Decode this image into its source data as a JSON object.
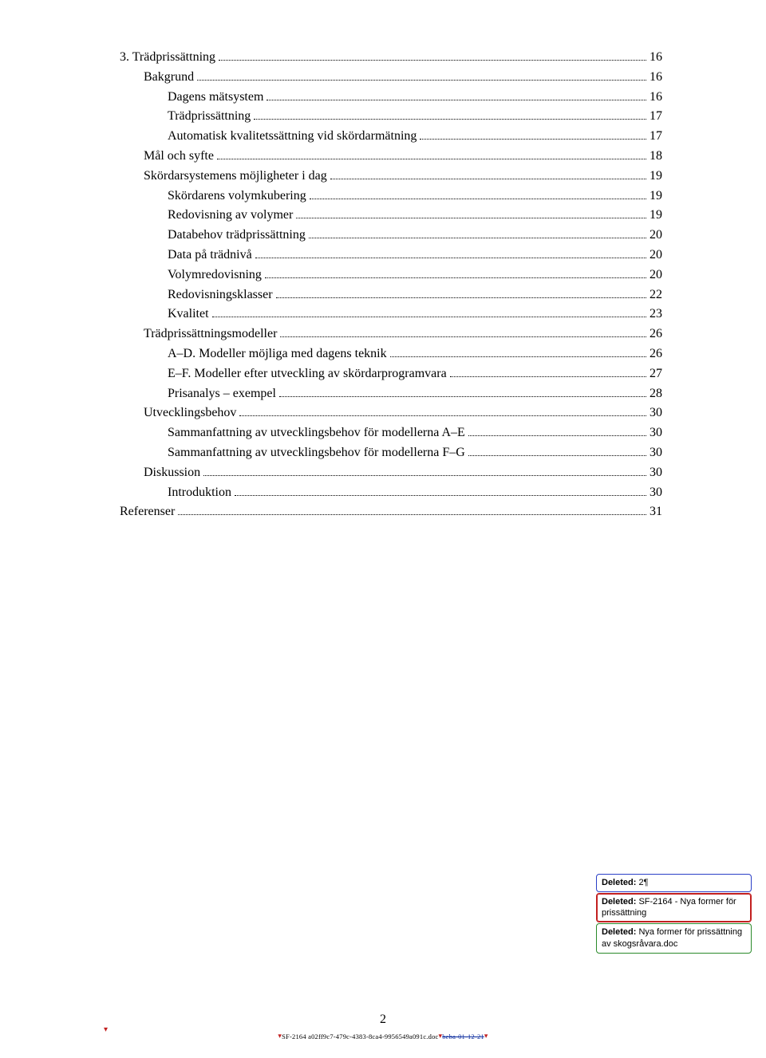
{
  "toc": [
    {
      "indent": 0,
      "label": "3. Trädprissättning",
      "page": "16"
    },
    {
      "indent": 1,
      "label": "Bakgrund",
      "page": "16"
    },
    {
      "indent": 2,
      "label": "Dagens mätsystem",
      "page": "16"
    },
    {
      "indent": 2,
      "label": "Trädprissättning",
      "page": "17"
    },
    {
      "indent": 2,
      "label": "Automatisk kvalitetssättning vid skördarmätning",
      "page": "17"
    },
    {
      "indent": 1,
      "label": "Mål och syfte",
      "page": "18"
    },
    {
      "indent": 1,
      "label": "Skördarsystemens möjligheter i dag",
      "page": "19"
    },
    {
      "indent": 2,
      "label": "Skördarens volymkubering",
      "page": "19"
    },
    {
      "indent": 2,
      "label": "Redovisning av volymer",
      "page": "19"
    },
    {
      "indent": 2,
      "label": "Databehov trädprissättning",
      "page": "20"
    },
    {
      "indent": 2,
      "label": "Data på trädnivå",
      "page": "20"
    },
    {
      "indent": 2,
      "label": "Volymredovisning",
      "page": "20"
    },
    {
      "indent": 2,
      "label": "Redovisningsklasser",
      "page": "22"
    },
    {
      "indent": 2,
      "label": "Kvalitet",
      "page": "23"
    },
    {
      "indent": 1,
      "label": "Trädprissättningsmodeller",
      "page": "26"
    },
    {
      "indent": 2,
      "label": "A–D. Modeller möjliga med dagens teknik",
      "page": "26"
    },
    {
      "indent": 2,
      "label": "E–F. Modeller efter utveckling av skördarprogramvara",
      "page": "27"
    },
    {
      "indent": 2,
      "label": "Prisanalys – exempel",
      "page": "28"
    },
    {
      "indent": 1,
      "label": "Utvecklingsbehov",
      "page": "30"
    },
    {
      "indent": 2,
      "label": "Sammanfattning av utvecklingsbehov för modellerna A–E",
      "page": "30"
    },
    {
      "indent": 2,
      "label": "Sammanfattning av utvecklingsbehov för modellerna F–G",
      "page": "30"
    },
    {
      "indent": 1,
      "label": "Diskussion",
      "page": "30"
    },
    {
      "indent": 2,
      "label": "Introduktion",
      "page": "30"
    },
    {
      "indent": 0,
      "label": "Referenser",
      "page": "31"
    }
  ],
  "deleted": [
    {
      "color": "blue",
      "prefix": "Deleted:",
      "text": " 2¶"
    },
    {
      "color": "red",
      "prefix": "Deleted:",
      "text": " SF-2164 - Nya former för prissättning"
    },
    {
      "color": "green",
      "prefix": "Deleted:",
      "text": " Nya former för prissättning av skogsråvara.doc"
    }
  ],
  "footer": {
    "pagenum": "2",
    "docid_plain": "SF-2164 a02ff9c7-479c-4383-8ca4-9956549a091c.doc",
    "docid_strike": "beba-01-12-21"
  }
}
